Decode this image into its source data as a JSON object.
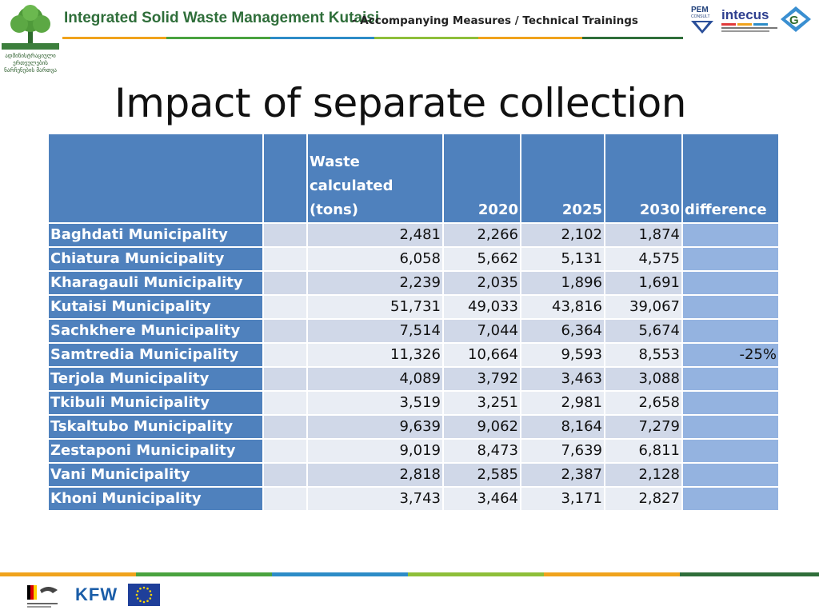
{
  "header": {
    "logo_caption": "ადმინისტრაციული ერთეულების ნარჩენების მართვა",
    "project_title": "Integrated Solid Waste Management Kutaisi",
    "subtitle": "- Accompanying Measures / Technical Trainings",
    "partner_logos": [
      "PEM CONSULT",
      "intecus",
      "G-logo"
    ]
  },
  "page": {
    "title": "Impact of separate collection"
  },
  "table": {
    "headers": {
      "name": "",
      "blank": "",
      "waste": "Waste calculated (tons)",
      "y2020": "2020",
      "y2025": "2025",
      "y2030": "2030",
      "difference": "difference"
    },
    "rows": [
      {
        "name": "Baghdati Municipality",
        "waste": "2,481",
        "y2020": "2,266",
        "y2025": "2,102",
        "y2030": "1,874",
        "difference": ""
      },
      {
        "name": "Chiatura Municipality",
        "waste": "6,058",
        "y2020": "5,662",
        "y2025": "5,131",
        "y2030": "4,575",
        "difference": ""
      },
      {
        "name": "Kharagauli Municipality",
        "waste": "2,239",
        "y2020": "2,035",
        "y2025": "1,896",
        "y2030": "1,691",
        "difference": ""
      },
      {
        "name": "Kutaisi Municipality",
        "waste": "51,731",
        "y2020": "49,033",
        "y2025": "43,816",
        "y2030": "39,067",
        "difference": ""
      },
      {
        "name": "Sachkhere Municipality",
        "waste": "7,514",
        "y2020": "7,044",
        "y2025": "6,364",
        "y2030": "5,674",
        "difference": ""
      },
      {
        "name": "Samtredia Municipality",
        "waste": "11,326",
        "y2020": "10,664",
        "y2025": "9,593",
        "y2030": "8,553",
        "difference": "-25%"
      },
      {
        "name": "Terjola Municipality",
        "waste": "4,089",
        "y2020": "3,792",
        "y2025": "3,463",
        "y2030": "3,088",
        "difference": ""
      },
      {
        "name": "Tkibuli Municipality",
        "waste": "3,519",
        "y2020": "3,251",
        "y2025": "2,981",
        "y2030": "2,658",
        "difference": ""
      },
      {
        "name": "Tskaltubo Municipality",
        "waste": "9,639",
        "y2020": "9,062",
        "y2025": "8,164",
        "y2030": "7,279",
        "difference": ""
      },
      {
        "name": "Zestaponi Municipality",
        "waste": "9,019",
        "y2020": "8,473",
        "y2025": "7,639",
        "y2030": "6,811",
        "difference": ""
      },
      {
        "name": "Vani Municipality",
        "waste": "2,818",
        "y2020": "2,585",
        "y2025": "2,387",
        "y2030": "2,128",
        "difference": ""
      },
      {
        "name": "Khoni Municipality",
        "waste": "3,743",
        "y2020": "3,464",
        "y2025": "3,171",
        "y2030": "2,827",
        "difference": ""
      }
    ]
  },
  "footer": {
    "logos": [
      "bmz-logo",
      "KFW",
      "eu-flag"
    ],
    "kfw_text": "KFW"
  },
  "colors": {
    "header_blue": "#4f81bd",
    "row_dark": "#d0d8e8",
    "row_light": "#e9edf4",
    "diff_col": "#94b3e0",
    "title_green": "#2f6e3a"
  }
}
